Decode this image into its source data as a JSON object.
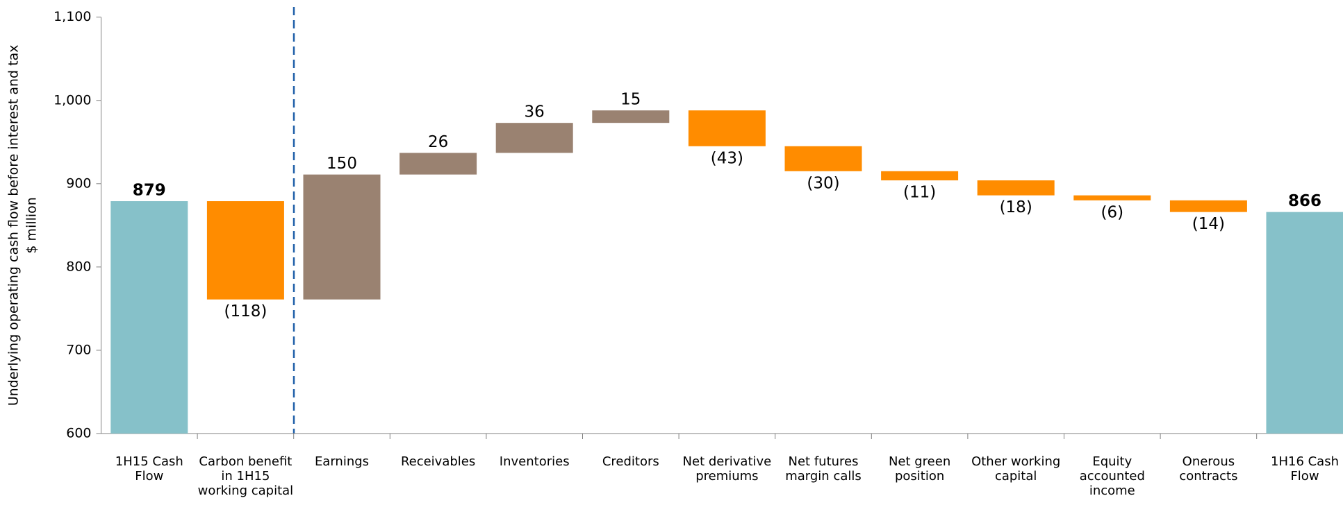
{
  "chart_data": {
    "type": "waterfall",
    "ylabel": [
      "Underlying operating cash flow before interest and tax",
      "$ million"
    ],
    "categories": [
      "1H15 Cash Flow",
      "Carbon benefit in 1H15 working capital",
      "Earnings",
      "Receivables",
      "Inventories",
      "Creditors",
      "Net derivative premiums",
      "Net futures margin calls",
      "Net green position",
      "Other working capital",
      "Equity accounted income",
      "Onerous contracts",
      "1H16 Cash Flow"
    ],
    "values": [
      879,
      -118,
      150,
      26,
      36,
      15,
      -43,
      -30,
      -11,
      -18,
      -6,
      -14,
      866
    ],
    "value_labels": [
      "879",
      "(118)",
      "150",
      "26",
      "36",
      "15",
      "(43)",
      "(30)",
      "(11)",
      "(18)",
      "(6)",
      "(14)",
      "866"
    ],
    "measure": [
      "absolute",
      "relative",
      "relative",
      "relative",
      "relative",
      "relative",
      "relative",
      "relative",
      "relative",
      "relative",
      "relative",
      "relative",
      "absolute"
    ],
    "colors": {
      "total": "#86c1c9",
      "increase": "#9a8271",
      "decrease": "#ff8c00"
    },
    "ylim": [
      600,
      1100
    ],
    "yticks": [
      600,
      700,
      800,
      900,
      {
        "value": 1000,
        "label": "1,000"
      },
      {
        "value": 1100,
        "label": "1,100"
      }
    ]
  }
}
